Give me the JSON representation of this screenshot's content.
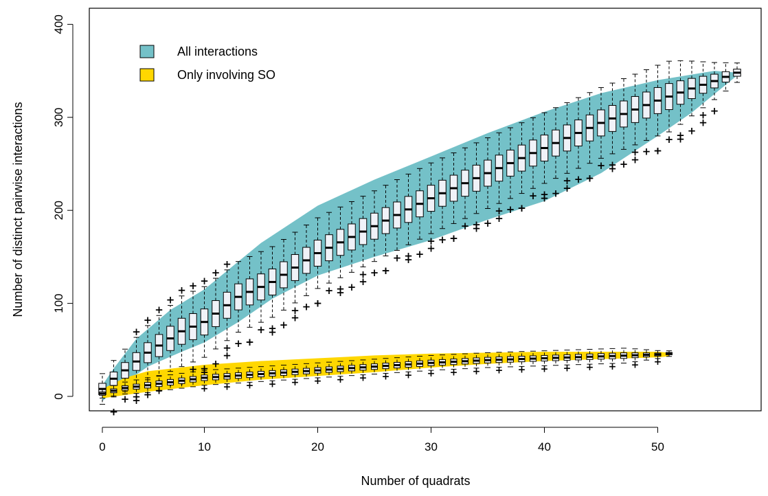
{
  "chart_data": {
    "type": "box",
    "title": "",
    "xlabel": "Number of  quadrats",
    "ylabel": "Number of distinct pairwise interactions",
    "xlim": [
      0,
      57
    ],
    "ylim": [
      0,
      400
    ],
    "x_ticks": [
      0,
      10,
      20,
      30,
      40,
      50
    ],
    "y_ticks": [
      0,
      100,
      200,
      300,
      400
    ],
    "grid": false,
    "legend": {
      "position": "top-left",
      "entries": [
        {
          "label": "All interactions",
          "color": "#74C1C8"
        },
        {
          "label": "Only involving SO",
          "color": "#FFD700"
        }
      ]
    },
    "series": [
      {
        "name": "All interactions",
        "band_color": "#74C1C8",
        "box_color": "#F0F2F8",
        "n_min": 1,
        "n_max": 57,
        "band_lower": [
          [
            1,
            -5
          ],
          [
            3,
            15
          ],
          [
            5,
            32
          ],
          [
            8,
            48
          ],
          [
            10,
            58
          ],
          [
            13,
            80
          ],
          [
            16,
            105
          ],
          [
            20,
            130
          ],
          [
            25,
            150
          ],
          [
            30,
            168
          ],
          [
            35,
            190
          ],
          [
            40,
            210
          ],
          [
            45,
            240
          ],
          [
            50,
            280
          ],
          [
            53,
            305
          ],
          [
            55,
            325
          ],
          [
            57,
            345
          ]
        ],
        "band_upper": [
          [
            1,
            12
          ],
          [
            2,
            30
          ],
          [
            4,
            62
          ],
          [
            7,
            93
          ],
          [
            10,
            115
          ],
          [
            12,
            135
          ],
          [
            15,
            165
          ],
          [
            20,
            205
          ],
          [
            25,
            233
          ],
          [
            30,
            258
          ],
          [
            35,
            283
          ],
          [
            40,
            306
          ],
          [
            45,
            326
          ],
          [
            50,
            340
          ],
          [
            55,
            350
          ],
          [
            57,
            348
          ]
        ],
        "median_anchors": [
          [
            1,
            8
          ],
          [
            2,
            19
          ],
          [
            3,
            28
          ],
          [
            5,
            47
          ],
          [
            8,
            70
          ],
          [
            10,
            80
          ],
          [
            13,
            107
          ],
          [
            16,
            123
          ],
          [
            20,
            154
          ],
          [
            25,
            183
          ],
          [
            30,
            213
          ],
          [
            35,
            240
          ],
          [
            40,
            267
          ],
          [
            45,
            294
          ],
          [
            50,
            318
          ],
          [
            53,
            331
          ],
          [
            55,
            339
          ],
          [
            57,
            348
          ]
        ],
        "iqr_half": 14,
        "whisker_half": 38
      },
      {
        "name": "Only involving SO",
        "band_color": "#FFD700",
        "box_color": "#F0F2F8",
        "n_min": 1,
        "n_max": 51,
        "band_lower": [
          [
            1,
            -2
          ],
          [
            5,
            5
          ],
          [
            10,
            12
          ],
          [
            15,
            18
          ],
          [
            20,
            22
          ],
          [
            25,
            26
          ],
          [
            30,
            31
          ],
          [
            35,
            35
          ],
          [
            40,
            38
          ],
          [
            45,
            40
          ],
          [
            50,
            42
          ],
          [
            51,
            43
          ]
        ],
        "band_upper": [
          [
            1,
            8
          ],
          [
            3,
            20
          ],
          [
            5,
            27
          ],
          [
            10,
            34
          ],
          [
            15,
            38
          ],
          [
            20,
            41
          ],
          [
            25,
            44
          ],
          [
            30,
            46
          ],
          [
            35,
            47
          ],
          [
            40,
            48
          ],
          [
            45,
            48
          ],
          [
            50,
            48
          ],
          [
            51,
            47
          ]
        ],
        "median_anchors": [
          [
            1,
            3
          ],
          [
            3,
            9
          ],
          [
            5,
            12
          ],
          [
            10,
            20
          ],
          [
            15,
            24
          ],
          [
            20,
            28
          ],
          [
            25,
            32
          ],
          [
            30,
            36
          ],
          [
            35,
            39
          ],
          [
            40,
            41
          ],
          [
            45,
            43
          ],
          [
            50,
            45
          ],
          [
            51,
            46
          ]
        ],
        "iqr_half": 3,
        "whisker_half": 8
      }
    ]
  }
}
